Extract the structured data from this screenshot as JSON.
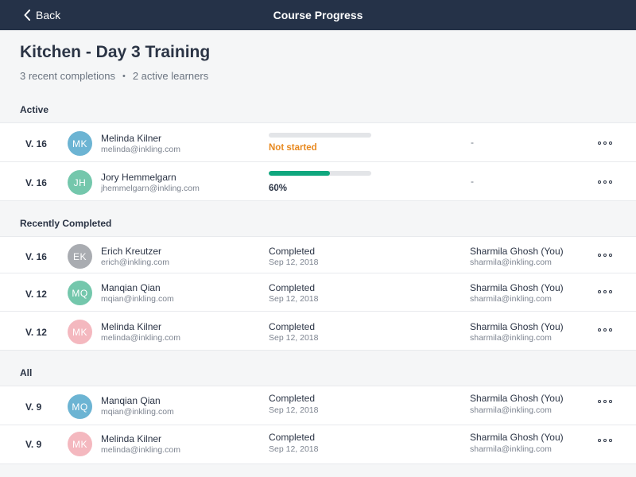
{
  "header": {
    "back_label": "Back",
    "title": "Course Progress"
  },
  "page": {
    "title": "Kitchen - Day 3 Training",
    "recent_completions": "3 recent completions",
    "separator": "•",
    "active_learners": "2 active learners"
  },
  "colors": {
    "header_bg": "#253248",
    "progress": "#0fa77e",
    "not_started": "#e8891f"
  },
  "sections": [
    {
      "label": "Active",
      "rows": [
        {
          "version": "V. 16",
          "initials": "MK",
          "avatar_color": "#6cb4d3",
          "name": "Melinda Kilner",
          "email": "melinda@inkling.com",
          "progress": 0,
          "status": "Not started",
          "grader": "-"
        },
        {
          "version": "V. 16",
          "initials": "JH",
          "avatar_color": "#74c7ac",
          "name": "Jory Hemmelgarn",
          "email": "jhemmelgarn@inkling.com",
          "progress": 0.6,
          "status": "60%",
          "grader": "-"
        }
      ]
    },
    {
      "label": "Recently Completed",
      "rows": [
        {
          "version": "V. 16",
          "initials": "EK",
          "avatar_color": "#a9acb1",
          "name": "Erich Kreutzer",
          "email": "erich@inkling.com",
          "status": "Completed",
          "date": "Sep 12, 2018",
          "grader": "Sharmila Ghosh (You)",
          "grader_email": "sharmila@inkling.com"
        },
        {
          "version": "V. 12",
          "initials": "MQ",
          "avatar_color": "#74c7ac",
          "name": "Manqian Qian",
          "email": "mqian@inkling.com",
          "status": "Completed",
          "date": "Sep 12, 2018",
          "grader": "Sharmila Ghosh (You)",
          "grader_email": "sharmila@inkling.com"
        },
        {
          "version": "V. 12",
          "initials": "MK",
          "avatar_color": "#f4b8bf",
          "name": "Melinda Kilner",
          "email": "melinda@inkling.com",
          "status": "Completed",
          "date": "Sep 12, 2018",
          "grader": "Sharmila Ghosh (You)",
          "grader_email": "sharmila@inkling.com"
        }
      ]
    },
    {
      "label": "All",
      "rows": [
        {
          "version": "V. 9",
          "initials": "MQ",
          "avatar_color": "#6cb4d3",
          "name": "Manqian Qian",
          "email": "mqian@inkling.com",
          "status": "Completed",
          "date": "Sep 12, 2018",
          "grader": "Sharmila Ghosh (You)",
          "grader_email": "sharmila@inkling.com"
        },
        {
          "version": "V. 9",
          "initials": "MK",
          "avatar_color": "#f4b8bf",
          "name": "Melinda Kilner",
          "email": "melinda@inkling.com",
          "status": "Completed",
          "date": "Sep 12, 2018",
          "grader": "Sharmila Ghosh (You)",
          "grader_email": "sharmila@inkling.com"
        }
      ]
    }
  ]
}
